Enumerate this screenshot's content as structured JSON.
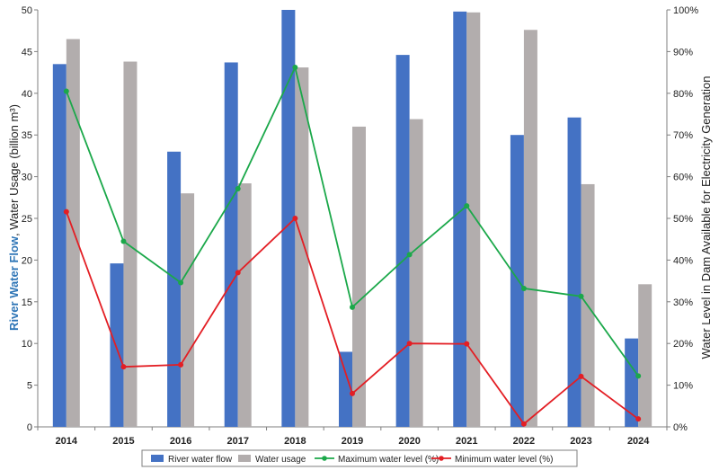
{
  "chart_data": {
    "type": "bar",
    "categories": [
      "2014",
      "2015",
      "2016",
      "2017",
      "2018",
      "2019",
      "2020",
      "2021",
      "2022",
      "2023",
      "2024"
    ],
    "series": [
      {
        "name": "River water flow",
        "kind": "bar",
        "axis": "left",
        "color": "#4472c4",
        "values": [
          43.5,
          19.6,
          33.0,
          43.7,
          50.0,
          9.0,
          44.6,
          49.8,
          35.0,
          37.1,
          10.6
        ]
      },
      {
        "name": "Water usage",
        "kind": "bar",
        "axis": "left",
        "color": "#b2adad",
        "values": [
          46.5,
          43.8,
          28.0,
          29.2,
          43.1,
          36.0,
          36.9,
          49.7,
          47.6,
          29.1,
          17.1
        ]
      },
      {
        "name": "Maximum water level (%)",
        "kind": "line",
        "axis": "right",
        "color": "#1ba84a",
        "values": [
          80.5,
          44.5,
          34.6,
          57.1,
          86.2,
          28.7,
          41.3,
          53.0,
          33.2,
          31.3,
          12.2
        ]
      },
      {
        "name": "Minimum water level (%)",
        "kind": "line",
        "axis": "right",
        "color": "#e31e24",
        "values": [
          51.6,
          14.4,
          14.9,
          37.0,
          50.0,
          8.0,
          20.0,
          19.9,
          0.7,
          12.1,
          1.9
        ]
      }
    ],
    "ylabel_left_part1": "River Water Flow",
    "ylabel_left_part2": ", Water Usage (billion m³)",
    "ylabel_right": "Water Level in Dam Available for Electricity Generation",
    "ylim_left": [
      0,
      50
    ],
    "ylim_right": [
      0,
      100
    ],
    "yticks_left": [
      "0",
      "5",
      "10",
      "15",
      "20",
      "25",
      "30",
      "35",
      "40",
      "45",
      "50"
    ],
    "yticks_right": [
      "0%",
      "10%",
      "20%",
      "30%",
      "40%",
      "50%",
      "60%",
      "70%",
      "80%",
      "90%",
      "100%"
    ],
    "ylabel_left_highlight_color": "#2e75b6",
    "grid": false,
    "legend_position": "bottom"
  }
}
